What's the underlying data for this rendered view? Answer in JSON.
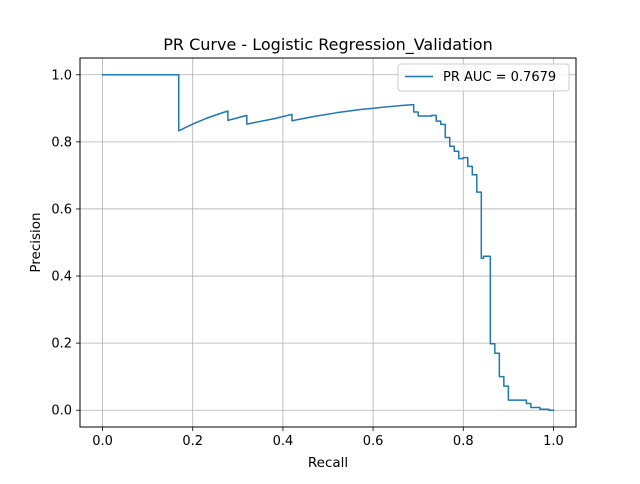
{
  "chart_data": {
    "type": "line",
    "title": "PR Curve - Logistic Regression_Validation",
    "xlabel": "Recall",
    "ylabel": "Precision",
    "xlim": [
      -0.05,
      1.05
    ],
    "ylim": [
      -0.05,
      1.05
    ],
    "xticks": [
      0.0,
      0.2,
      0.4,
      0.6,
      0.8,
      1.0
    ],
    "xtick_labels": [
      "0.0",
      "0.2",
      "0.4",
      "0.6",
      "0.8",
      "1.0"
    ],
    "yticks": [
      0.0,
      0.2,
      0.4,
      0.6,
      0.8,
      1.0
    ],
    "ytick_labels": [
      "0.0",
      "0.2",
      "0.4",
      "0.6",
      "0.8",
      "1.0"
    ],
    "grid": true,
    "legend_position": "top-right",
    "series": [
      {
        "name": "PR AUC = 0.7679",
        "color": "#1f77b4",
        "x": [
          0.0,
          0.169,
          0.169,
          0.2,
          0.23,
          0.255,
          0.278,
          0.278,
          0.32,
          0.32,
          0.38,
          0.42,
          0.42,
          0.47,
          0.52,
          0.57,
          0.62,
          0.66,
          0.69,
          0.69,
          0.7,
          0.7,
          0.73,
          0.73,
          0.74,
          0.74,
          0.75,
          0.75,
          0.76,
          0.76,
          0.77,
          0.77,
          0.78,
          0.78,
          0.79,
          0.79,
          0.8,
          0.8,
          0.81,
          0.81,
          0.82,
          0.82,
          0.83,
          0.83,
          0.84,
          0.84,
          0.845,
          0.845,
          0.86,
          0.86,
          0.87,
          0.87,
          0.88,
          0.88,
          0.89,
          0.89,
          0.9,
          0.9,
          0.91,
          0.91,
          0.94,
          0.94,
          0.95,
          0.95,
          0.97,
          0.97,
          0.99,
          0.99,
          1.0
        ],
        "y": [
          1.0,
          1.0,
          0.833,
          0.853,
          0.87,
          0.882,
          0.892,
          0.864,
          0.879,
          0.853,
          0.869,
          0.882,
          0.863,
          0.876,
          0.887,
          0.896,
          0.903,
          0.908,
          0.911,
          0.889,
          0.889,
          0.877,
          0.877,
          0.879,
          0.879,
          0.862,
          0.862,
          0.852,
          0.852,
          0.813,
          0.813,
          0.787,
          0.787,
          0.772,
          0.772,
          0.75,
          0.75,
          0.753,
          0.753,
          0.727,
          0.727,
          0.702,
          0.702,
          0.65,
          0.65,
          0.453,
          0.453,
          0.459,
          0.459,
          0.198,
          0.198,
          0.17,
          0.17,
          0.1,
          0.1,
          0.072,
          0.072,
          0.03,
          0.03,
          0.03,
          0.03,
          0.02,
          0.02,
          0.008,
          0.008,
          0.003,
          0.003,
          0.0,
          0.0
        ]
      }
    ]
  }
}
